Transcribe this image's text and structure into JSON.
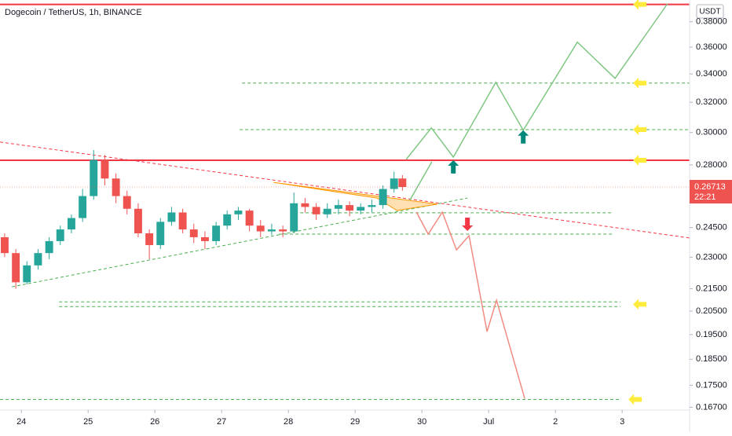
{
  "chart_data": {
    "type": "candlestick",
    "title": "Dogecoin / TetherUS, 1h, BINANCE",
    "currency": "USDT",
    "log_scale": true,
    "up_color": "#26a69a",
    "down_color": "#ef5350",
    "xlim": [
      23.68,
      34.01
    ],
    "xticks": [
      24,
      25,
      26,
      27,
      28,
      29,
      30,
      {
        "value": 31,
        "label": "Jul"
      },
      {
        "value": 32,
        "label": "2"
      },
      {
        "value": 33,
        "label": "3"
      }
    ],
    "ylim": [
      0.166,
      0.398
    ],
    "yticks": [
      {
        "value": 0.38,
        "label": "0.38000"
      },
      {
        "value": 0.36,
        "label": "0.36000"
      },
      {
        "value": 0.34,
        "label": "0.34000"
      },
      {
        "value": 0.32,
        "label": "0.32000"
      },
      {
        "value": 0.3,
        "label": "0.30000"
      },
      {
        "value": 0.28,
        "label": "0.28000"
      },
      {
        "value": 0.245,
        "label": "0.24500"
      },
      {
        "value": 0.23,
        "label": "0.23000"
      },
      {
        "value": 0.215,
        "label": "0.21500"
      },
      {
        "value": 0.205,
        "label": "0.20500"
      },
      {
        "value": 0.195,
        "label": "0.19500"
      },
      {
        "value": 0.185,
        "label": "0.18500"
      },
      {
        "value": 0.175,
        "label": "0.17500"
      },
      {
        "value": 0.167,
        "label": "0.16700"
      }
    ],
    "candles": [
      [
        23.75,
        0.24,
        0.242,
        0.23,
        0.232
      ],
      [
        23.917,
        0.232,
        0.234,
        0.215,
        0.218
      ],
      [
        24.083,
        0.218,
        0.228,
        0.217,
        0.226
      ],
      [
        24.25,
        0.226,
        0.234,
        0.224,
        0.232
      ],
      [
        24.417,
        0.232,
        0.24,
        0.229,
        0.238
      ],
      [
        24.583,
        0.238,
        0.246,
        0.236,
        0.244
      ],
      [
        24.75,
        0.244,
        0.252,
        0.242,
        0.25
      ],
      [
        24.917,
        0.25,
        0.266,
        0.248,
        0.262
      ],
      [
        25.083,
        0.262,
        0.289,
        0.26,
        0.283
      ],
      [
        25.25,
        0.283,
        0.286,
        0.268,
        0.272
      ],
      [
        25.417,
        0.272,
        0.275,
        0.258,
        0.262
      ],
      [
        25.583,
        0.262,
        0.265,
        0.252,
        0.255
      ],
      [
        25.75,
        0.255,
        0.258,
        0.24,
        0.242
      ],
      [
        25.917,
        0.242,
        0.244,
        0.229,
        0.236
      ],
      [
        26.083,
        0.236,
        0.25,
        0.234,
        0.248
      ],
      [
        26.25,
        0.248,
        0.256,
        0.246,
        0.253
      ],
      [
        26.417,
        0.253,
        0.255,
        0.242,
        0.244
      ],
      [
        26.583,
        0.244,
        0.247,
        0.237,
        0.24
      ],
      [
        26.75,
        0.24,
        0.243,
        0.234,
        0.238
      ],
      [
        26.917,
        0.238,
        0.248,
        0.236,
        0.246
      ],
      [
        27.083,
        0.246,
        0.254,
        0.244,
        0.252
      ],
      [
        27.25,
        0.252,
        0.256,
        0.249,
        0.254
      ],
      [
        27.417,
        0.254,
        0.255,
        0.243,
        0.246
      ],
      [
        27.583,
        0.246,
        0.249,
        0.24,
        0.243
      ],
      [
        27.75,
        0.243,
        0.247,
        0.241,
        0.244
      ],
      [
        27.917,
        0.244,
        0.246,
        0.24,
        0.243
      ],
      [
        28.083,
        0.243,
        0.264,
        0.242,
        0.258
      ],
      [
        28.25,
        0.258,
        0.261,
        0.253,
        0.256
      ],
      [
        28.417,
        0.256,
        0.258,
        0.249,
        0.252
      ],
      [
        28.583,
        0.252,
        0.258,
        0.25,
        0.255
      ],
      [
        28.75,
        0.255,
        0.26,
        0.252,
        0.257
      ],
      [
        28.917,
        0.257,
        0.259,
        0.251,
        0.254
      ],
      [
        29.083,
        0.254,
        0.258,
        0.252,
        0.256
      ],
      [
        29.25,
        0.256,
        0.26,
        0.253,
        0.257
      ],
      [
        29.417,
        0.257,
        0.268,
        0.255,
        0.266
      ],
      [
        29.583,
        0.266,
        0.276,
        0.264,
        0.272
      ],
      [
        29.708,
        0.272,
        0.274,
        0.265,
        0.26713
      ]
    ],
    "last_price": 0.26713,
    "countdown": "22:21",
    "drawings": [
      {
        "kind": "line",
        "color": "#f23645",
        "dashed": false,
        "width": 2,
        "points": [
          [
            23.68,
            0.3943
          ],
          [
            34.01,
            0.3943
          ]
        ]
      },
      {
        "kind": "line",
        "color": "#f23645",
        "dashed": false,
        "width": 2,
        "points": [
          [
            23.68,
            0.2828
          ],
          [
            34.01,
            0.2828
          ]
        ]
      },
      {
        "kind": "line",
        "color": "#4caf50",
        "dashed": true,
        "width": 1,
        "points": [
          [
            27.306,
            0.3334
          ],
          [
            34.01,
            0.3334
          ]
        ]
      },
      {
        "kind": "line",
        "color": "#4caf50",
        "dashed": true,
        "width": 1,
        "points": [
          [
            27.27,
            0.3019
          ],
          [
            34.01,
            0.3019
          ]
        ]
      },
      {
        "kind": "line",
        "color": "#4caf50",
        "dashed": true,
        "width": 1,
        "points": [
          [
            28.094,
            0.2528
          ],
          [
            32.859,
            0.2528
          ]
        ]
      },
      {
        "kind": "line",
        "color": "#4caf50",
        "dashed": true,
        "width": 1,
        "points": [
          [
            27.859,
            0.2416
          ],
          [
            32.859,
            0.2416
          ]
        ]
      },
      {
        "kind": "line",
        "color": "#4caf50",
        "dashed": true,
        "width": 1,
        "points": [
          [
            24.565,
            0.2091
          ],
          [
            32.976,
            0.2091
          ]
        ]
      },
      {
        "kind": "line",
        "color": "#4caf50",
        "dashed": true,
        "width": 1,
        "points": [
          [
            24.565,
            0.207
          ],
          [
            32.976,
            0.207
          ]
        ]
      },
      {
        "kind": "line",
        "color": "#4caf50",
        "dashed": true,
        "width": 1,
        "points": [
          [
            23.68,
            0.1698
          ],
          [
            32.976,
            0.1698
          ]
        ]
      },
      {
        "kind": "line",
        "color": "#f23645",
        "dashed": true,
        "width": 1,
        "points": [
          [
            23.68,
            0.294
          ],
          [
            34.01,
            0.2396
          ]
        ]
      },
      {
        "kind": "line",
        "color": "#4caf50",
        "dashed": true,
        "width": 1,
        "points": [
          [
            23.859,
            0.2159
          ],
          [
            30.682,
            0.2609
          ]
        ]
      },
      {
        "kind": "polygon",
        "color": "#ff9800",
        "dashed": false,
        "width": 1,
        "points": [
          [
            27.776,
            0.2698
          ],
          [
            30.235,
            0.2575
          ],
          [
            29.624,
            0.2541
          ],
          [
            29.329,
            0.2609
          ]
        ]
      },
      {
        "kind": "polyline",
        "color": "#81c784",
        "dashed": false,
        "width": 1.5,
        "points": [
          [
            29.765,
            0.2833
          ],
          [
            30.141,
            0.303
          ],
          [
            30.471,
            0.2847
          ],
          [
            31.106,
            0.3339
          ],
          [
            31.518,
            0.3015
          ],
          [
            32.329,
            0.3638
          ],
          [
            32.894,
            0.3368
          ],
          [
            33.682,
            0.395
          ]
        ]
      },
      {
        "kind": "polyline",
        "color": "#81c784",
        "dashed": false,
        "width": 1.5,
        "points": [
          [
            29.82,
            0.2597
          ],
          [
            30.15,
            0.2819
          ]
        ]
      },
      {
        "kind": "polyline",
        "color": "#f28b82",
        "dashed": false,
        "width": 1.5,
        "points": [
          [
            29.918,
            0.2532
          ],
          [
            30.094,
            0.2416
          ],
          [
            30.306,
            0.2532
          ],
          [
            30.518,
            0.2336
          ],
          [
            30.706,
            0.2408
          ],
          [
            30.976,
            0.1962
          ],
          [
            31.118,
            0.2098
          ],
          [
            31.541,
            0.1701
          ]
        ]
      }
    ],
    "markers": [
      {
        "shape": "up",
        "color": "#00897b",
        "t": 30.471,
        "price": 0.2786
      },
      {
        "shape": "up",
        "color": "#00897b",
        "t": 31.518,
        "price": 0.297
      },
      {
        "shape": "down",
        "color": "#f23645",
        "t": 30.682,
        "price": 0.2469
      },
      {
        "shape": "left",
        "color": "#ffeb3b",
        "t": 33.27,
        "price": 0.3943
      },
      {
        "shape": "left",
        "color": "#ffeb3b",
        "t": 33.27,
        "price": 0.3334
      },
      {
        "shape": "left",
        "color": "#ffeb3b",
        "t": 33.27,
        "price": 0.3019
      },
      {
        "shape": "left",
        "color": "#ffeb3b",
        "t": 33.27,
        "price": 0.2828
      },
      {
        "shape": "left",
        "color": "#ffeb3b",
        "t": 33.27,
        "price": 0.208
      },
      {
        "shape": "left",
        "color": "#ffeb3b",
        "t": 33.2,
        "price": 0.1698
      }
    ]
  }
}
